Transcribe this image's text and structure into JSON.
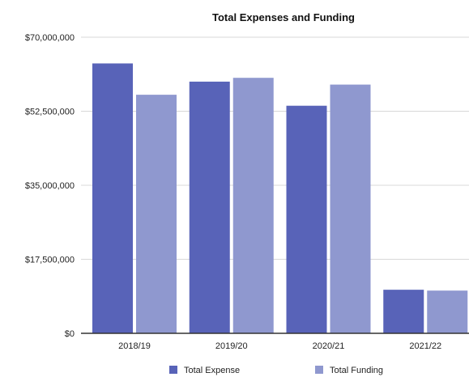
{
  "chart_data": {
    "type": "bar",
    "title": "Total Expenses and Funding",
    "xlabel": "",
    "ylabel": "",
    "categories": [
      "2018/19",
      "2019/20",
      "2020/21",
      "2021/22"
    ],
    "series": [
      {
        "name": "Total Expense",
        "color": "#5863B8",
        "values": [
          63800000,
          59500000,
          53800000,
          10300000
        ]
      },
      {
        "name": "Total Funding",
        "color": "#8F98CF",
        "values": [
          56400000,
          60400000,
          58800000,
          10100000
        ]
      }
    ],
    "ylim": [
      0,
      70000000
    ],
    "yticks": [
      0,
      17500000,
      35000000,
      52500000,
      70000000
    ],
    "ytick_labels": [
      "$0",
      "$17,500,000",
      "$35,000,000",
      "$52,500,000",
      "$70,000,000"
    ],
    "grid": true,
    "legend": "bottom-center"
  }
}
